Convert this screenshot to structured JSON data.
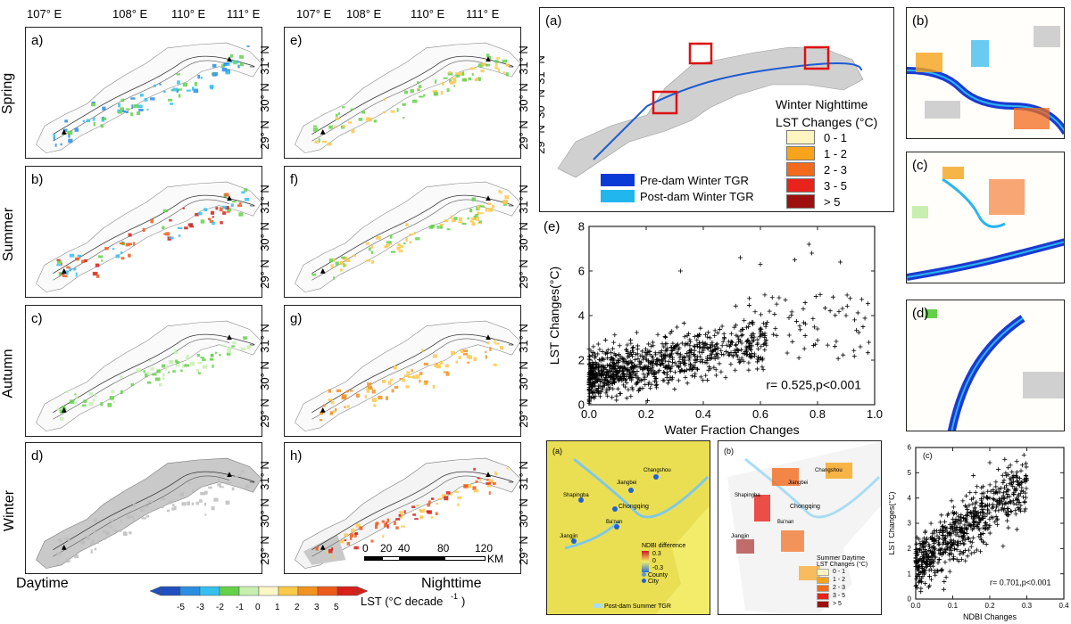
{
  "left_figure": {
    "longitudes": [
      "107° E",
      "108° E",
      "110° E",
      "111° E"
    ],
    "latitudes": [
      "31° N",
      "30° N",
      "29° N"
    ],
    "seasons": [
      "Spring",
      "Summer",
      "Autumn",
      "Winter"
    ],
    "day_panels": [
      "a)",
      "b)",
      "c)",
      "d)"
    ],
    "night_panels": [
      "e)",
      "f)",
      "g)",
      "h)"
    ],
    "daytime_label": "Daytime",
    "nighttime_label": "Nighttime",
    "scalebar": {
      "ticks": [
        "0",
        "20",
        "40",
        "80",
        "120"
      ],
      "unit": "KM"
    },
    "colorbar": {
      "ticks": [
        "-5",
        "-3",
        "-2",
        "-1",
        "0",
        "1",
        "2",
        "3",
        "5"
      ],
      "label": "LST (°C decade",
      "label_sup": "-1",
      "label_end": ")",
      "colors": [
        "#1f4fbf",
        "#2a8ee0",
        "#35c0f0",
        "#63d14a",
        "#c8eeb0",
        "#fff6c8",
        "#fac84a",
        "#f29222",
        "#ee5a1a",
        "#d7201a"
      ]
    }
  },
  "map_a": {
    "panel_label": "(a)",
    "latitudes": [
      "31° N",
      "30° N",
      "29° N"
    ],
    "legend_title_1": "Winter Nighttime",
    "legend_title_2": "LST Changes (°C)",
    "classes": [
      {
        "label": "0 - 1",
        "color": "#fdf5c0"
      },
      {
        "label": "1 - 2",
        "color": "#f7a41c"
      },
      {
        "label": "2 - 3",
        "color": "#f26a1b"
      },
      {
        "label": "3 - 5",
        "color": "#e8231c"
      },
      {
        "label": "> 5",
        "color": "#9e0f0f"
      }
    ],
    "tgr": [
      {
        "label": "Pre-dam Winter TGR",
        "color": "#0a3bd6"
      },
      {
        "label": "Post-dam Winter TGR",
        "color": "#21b6ee"
      }
    ]
  },
  "zoom_labels": [
    "(b)",
    "(c)",
    "(d)"
  ],
  "scatter_e": {
    "panel_label": "(e)",
    "xlabel": "Water Fraction Changes",
    "ylabel": "LST Changes(°C)",
    "xticks": [
      "0.0",
      "0.2",
      "0.4",
      "0.6",
      "0.8",
      "1.0"
    ],
    "yticks": [
      "0",
      "2",
      "4",
      "6",
      "8"
    ],
    "annotation": "r= 0.525,p<0.001"
  },
  "small_a": {
    "panel_label": "(a)",
    "cities": [
      "Changshou",
      "Jiangbei",
      "Shapingba",
      "Chongqing",
      "Ba'nan",
      "Jiangjin"
    ],
    "legend_title": "NDBI difference",
    "legend_high": "0.3",
    "legend_mid": "0",
    "legend_low": "-0.3",
    "county_label": "County",
    "city_label": "City",
    "tgr_label": "Post-dam Summer TGR"
  },
  "small_b": {
    "panel_label": "(b)",
    "cities": [
      "Changshou",
      "Jiangbei",
      "Shapingba",
      "Chongqing",
      "Ba'nan",
      "Jiangjin"
    ],
    "legend_title_1": "Summer Daytime",
    "legend_title_2": "LST Changes (°C)",
    "classes": [
      "0 - 1",
      "1 - 2",
      "2 - 3",
      "3 - 5",
      "> 5"
    ]
  },
  "scatter_c": {
    "panel_label": "(c)",
    "xlabel": "NDBI Changes",
    "ylabel": "LST Changes(°C)",
    "xticks": [
      "0.0",
      "0.1",
      "0.2",
      "0.3",
      "0.4"
    ],
    "yticks": [
      "0",
      "1",
      "2",
      "3",
      "4",
      "5",
      "6"
    ],
    "annotation": "r= 0.701,p<0.001"
  },
  "chart_data": [
    {
      "type": "scatter",
      "title": "(e)",
      "xlabel": "Water Fraction Changes",
      "ylabel": "LST Changes(°C)",
      "xlim": [
        0,
        1.0
      ],
      "ylim": [
        0,
        8
      ],
      "annotation": "r= 0.525,p<0.001",
      "summary": {
        "n_points_approx": 1000,
        "x_dense_range": [
          0,
          0.6
        ],
        "y_dense_range": [
          0.8,
          3.5
        ]
      },
      "sample_points": [
        [
          0.02,
          1.2
        ],
        [
          0.05,
          1.6
        ],
        [
          0.08,
          2.1
        ],
        [
          0.12,
          1.4
        ],
        [
          0.15,
          1.9
        ],
        [
          0.2,
          2.2
        ],
        [
          0.25,
          1.8
        ],
        [
          0.3,
          2.5
        ],
        [
          0.35,
          2.0
        ],
        [
          0.4,
          2.6
        ],
        [
          0.45,
          2.3
        ],
        [
          0.5,
          2.8
        ],
        [
          0.55,
          2.6
        ],
        [
          0.6,
          3.2
        ],
        [
          0.62,
          3.6
        ],
        [
          0.7,
          3.9
        ],
        [
          0.75,
          4.3
        ],
        [
          0.77,
          7.2
        ],
        [
          0.78,
          6.8
        ],
        [
          0.8,
          3.4
        ],
        [
          0.88,
          6.4
        ],
        [
          0.9,
          4.0
        ],
        [
          0.95,
          2.6
        ],
        [
          0.98,
          2.8
        ],
        [
          0.53,
          6.6
        ],
        [
          0.32,
          6.0
        ],
        [
          0.6,
          6.3
        ],
        [
          0.72,
          6.5
        ]
      ]
    },
    {
      "type": "scatter",
      "title": "(c)",
      "xlabel": "NDBI Changes",
      "ylabel": "LST Changes(°C)",
      "xlim": [
        0,
        0.4
      ],
      "ylim": [
        0,
        6
      ],
      "annotation": "r= 0.701,p<0.001",
      "summary": {
        "n_points_approx": 700,
        "x_dense_range": [
          0,
          0.25
        ],
        "y_dense_range": [
          1,
          4.5
        ]
      },
      "sample_points": [
        [
          0.01,
          1.3
        ],
        [
          0.02,
          1.6
        ],
        [
          0.04,
          1.9
        ],
        [
          0.05,
          2.2
        ],
        [
          0.07,
          2.0
        ],
        [
          0.09,
          2.6
        ],
        [
          0.1,
          2.8
        ],
        [
          0.12,
          3.0
        ],
        [
          0.14,
          3.3
        ],
        [
          0.16,
          3.6
        ],
        [
          0.18,
          3.8
        ],
        [
          0.2,
          4.0
        ],
        [
          0.22,
          4.2
        ],
        [
          0.24,
          4.4
        ],
        [
          0.26,
          4.6
        ],
        [
          0.28,
          4.5
        ],
        [
          0.3,
          4.7
        ],
        [
          0.2,
          5.4
        ],
        [
          0.25,
          5.2
        ],
        [
          0.15,
          1.8
        ],
        [
          0.06,
          1.1
        ],
        [
          0.03,
          2.4
        ]
      ]
    }
  ]
}
